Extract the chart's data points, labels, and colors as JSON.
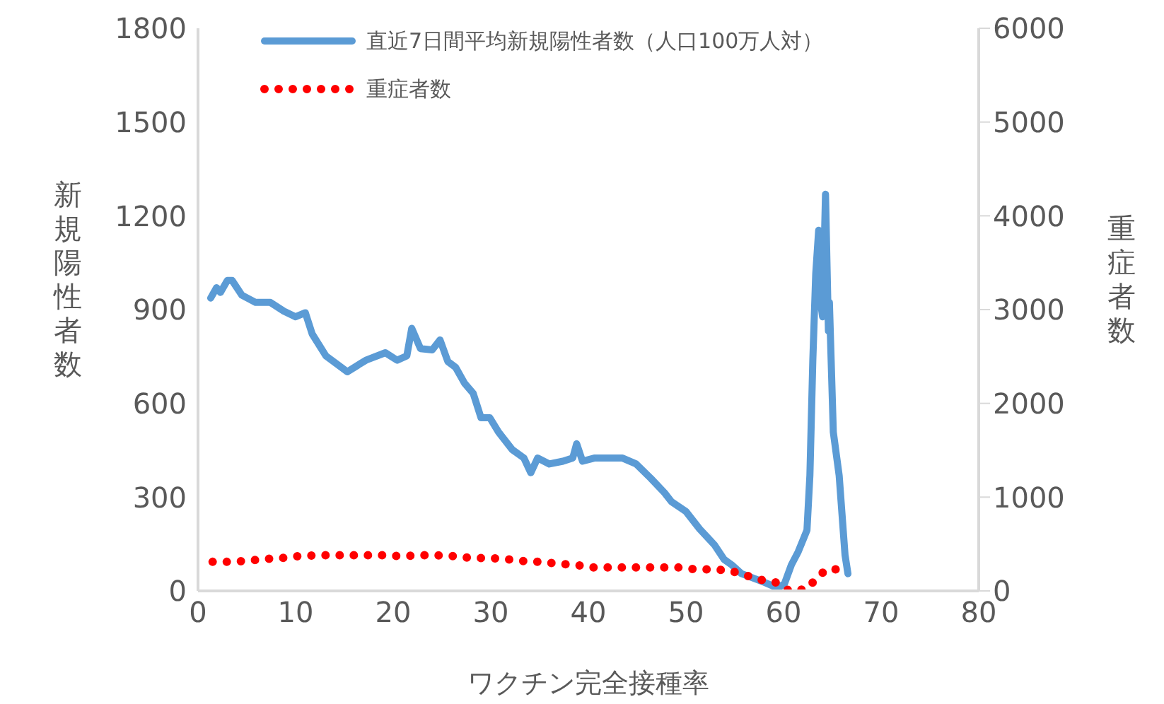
{
  "chart_data": {
    "type": "line",
    "xlabel": "ワクチン完全接種率",
    "ylabel": "新規陽性者数",
    "y2label": "重症者数",
    "xlim": [
      0,
      80
    ],
    "xticks": [
      0,
      10,
      20,
      30,
      40,
      50,
      60,
      70,
      80
    ],
    "ylim": [
      0,
      1800
    ],
    "yticks": [
      0,
      300,
      600,
      900,
      1200,
      1500,
      1800
    ],
    "y2lim": [
      0,
      6000
    ],
    "y2ticks": [
      0,
      1000,
      2000,
      3000,
      4000,
      5000,
      6000
    ],
    "grid": false,
    "legend": "top",
    "marker": "none",
    "series": [
      {
        "name": "直近7日間平均新規陽性者数（人口100万人対）",
        "color": "#5b9bd5",
        "line_style": "solid",
        "x": [
          1.3,
          1.9,
          2.3,
          3.0,
          3.5,
          4.5,
          5.9,
          7.4,
          8.8,
          10.0,
          11.0,
          11.7,
          13.1,
          15.3,
          17.2,
          19.2,
          20.4,
          21.4,
          21.9,
          22.8,
          24.0,
          24.8,
          25.6,
          26.4,
          27.3,
          28.2,
          29.0,
          29.9,
          30.8,
          32.2,
          33.4,
          34.1,
          34.8,
          36.0,
          37.4,
          38.4,
          38.8,
          39.4,
          40.6,
          42.0,
          43.5,
          44.9,
          46.4,
          47.8,
          48.5,
          50.0,
          51.4,
          52.9,
          53.9,
          54.7,
          55.7,
          58.0,
          59.4,
          60.1,
          60.8,
          61.5,
          62.4,
          62.7,
          63.0,
          63.3,
          63.6,
          63.7,
          64.0,
          64.3,
          64.6,
          64.7,
          65.1,
          65.7,
          66.3,
          66.6
        ],
        "values": [
          937,
          970,
          955,
          993,
          993,
          946,
          923,
          923,
          895,
          877,
          890,
          822,
          752,
          701,
          738,
          762,
          738,
          752,
          840,
          775,
          771,
          803,
          734,
          715,
          665,
          632,
          554,
          554,
          508,
          452,
          425,
          378,
          425,
          406,
          415,
          425,
          471,
          415,
          425,
          425,
          425,
          406,
          360,
          314,
          286,
          254,
          198,
          148,
          101,
          83,
          55,
          28,
          9,
          23,
          83,
          125,
          194,
          369,
          738,
          1015,
          1154,
          946,
          877,
          1269,
          831,
          923,
          508,
          369,
          115,
          55
        ]
      },
      {
        "name": "重症者数",
        "color": "#ff0000",
        "line_style": "dotted",
        "axis": "y2",
        "x": [
          1.5,
          3.2,
          4.9,
          6.8,
          8.5,
          10.3,
          12.1,
          13.9,
          15.6,
          17.5,
          19.2,
          20.9,
          22.7,
          24.4,
          26.3,
          28.0,
          29.7,
          31.5,
          33.2,
          35.1,
          36.8,
          38.6,
          40.3,
          42.2,
          43.9,
          45.8,
          47.5,
          49.2,
          51.0,
          52.7,
          54.4,
          56.0,
          57.6,
          59.2,
          60.6,
          62.4,
          63.4,
          64.4,
          65.4,
          66.4
        ],
        "values": [
          310,
          310,
          320,
          340,
          350,
          370,
          380,
          380,
          380,
          380,
          380,
          370,
          380,
          380,
          370,
          350,
          350,
          340,
          320,
          310,
          290,
          280,
          250,
          250,
          250,
          250,
          250,
          250,
          230,
          230,
          220,
          170,
          120,
          90,
          0,
          20,
          140,
          230,
          230,
          140
        ]
      }
    ]
  }
}
